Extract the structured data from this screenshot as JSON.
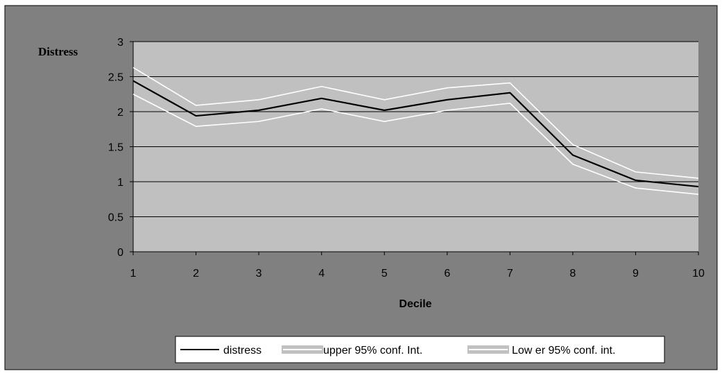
{
  "chart_data": {
    "type": "line",
    "title": "",
    "xlabel": "Decile",
    "ylabel": "Distress",
    "x": [
      1,
      2,
      3,
      4,
      5,
      6,
      7,
      8,
      9,
      10
    ],
    "xlim": [
      1,
      10
    ],
    "ylim": [
      0,
      3
    ],
    "yticks": [
      "0",
      "0.5",
      "1",
      "1.5",
      "2",
      "2.5",
      "3"
    ],
    "xticks": [
      "1",
      "2",
      "3",
      "4",
      "5",
      "6",
      "7",
      "8",
      "9",
      "10"
    ],
    "grid": true,
    "legend_position": "bottom-right",
    "series": [
      {
        "name": "distress",
        "color": "#000000",
        "values": [
          2.44,
          1.94,
          2.02,
          2.19,
          2.02,
          2.17,
          2.27,
          1.38,
          1.02,
          0.93
        ]
      },
      {
        "name": "upper 95% conf. Int.",
        "color": "#ffffff",
        "values": [
          2.63,
          2.09,
          2.17,
          2.36,
          2.17,
          2.34,
          2.41,
          1.53,
          1.14,
          1.05
        ]
      },
      {
        "name": "Low er 95% conf. int.",
        "color": "#ffffff",
        "values": [
          2.25,
          1.79,
          1.86,
          2.04,
          1.86,
          2.02,
          2.12,
          1.25,
          0.91,
          0.82
        ]
      }
    ],
    "colors": {
      "outer_background": "#808080",
      "plot_background": "#c0c0c0",
      "gridline": "#000000",
      "legend_background": "#ffffff"
    }
  }
}
